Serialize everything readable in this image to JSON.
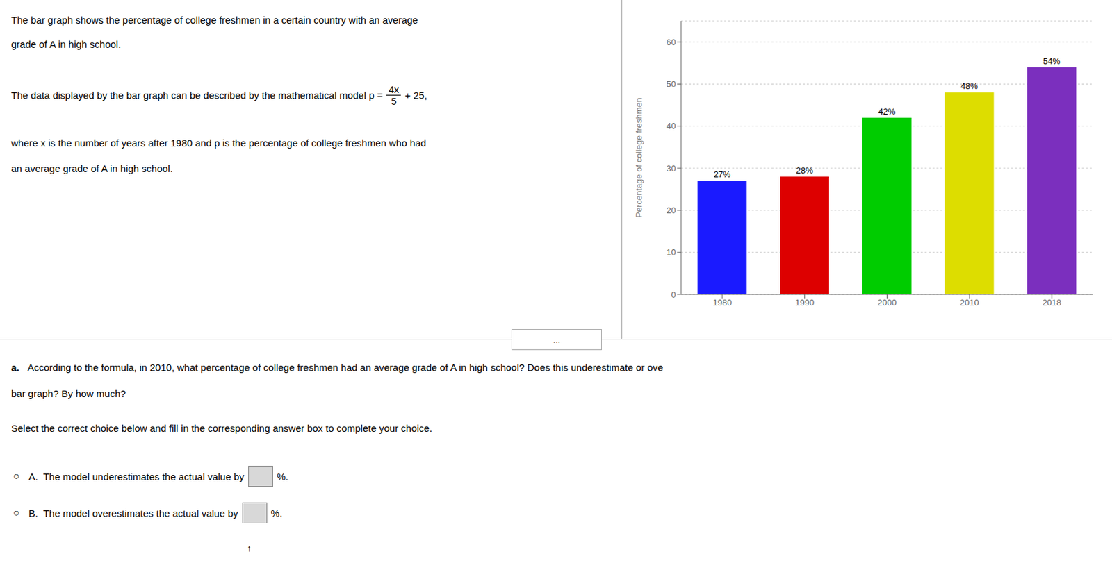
{
  "chart_data": {
    "type": "bar",
    "categories": [
      "1980",
      "1990",
      "2000",
      "2010",
      "2018"
    ],
    "values": [
      27,
      28,
      42,
      48,
      54
    ],
    "value_labels": [
      "27%",
      "28%",
      "42%",
      "48%",
      "54%"
    ],
    "data_labels": true,
    "colors": [
      "#1a1aff",
      "#dd0000",
      "#00cc00",
      "#dddd00",
      "#7b2fbe"
    ],
    "y_label": "Percentage of college freshmen",
    "ylim": [
      0,
      65
    ],
    "yticks": [
      0,
      10,
      20,
      30,
      40,
      50,
      60
    ],
    "grid": true,
    "annotations": [
      "The bar graph shows the percentage of college freshmen in a certain country with an average",
      "grade of A in high school.",
      "The data displayed by the bar graph can be described by the mathematical model p =",
      "4x",
      "5",
      "+ 25,",
      "where x is the number of years after 1980 and p is the percentage of college freshmen who had",
      "an average grade of A in high school.",
      "...",
      "a.",
      "According to the formula, in 2010, what percentage of college freshmen had an average grade of A in high school? Does this underestimate or ove",
      "bar graph? By how much?",
      "Select the correct choice below and fill in the corresponding answer box to complete your choice.",
      "○",
      "A.  The model underestimates the actual value by",
      "%.",
      "○",
      "B.  The model overestimates the actual value by",
      "%.",
      "↑"
    ]
  }
}
